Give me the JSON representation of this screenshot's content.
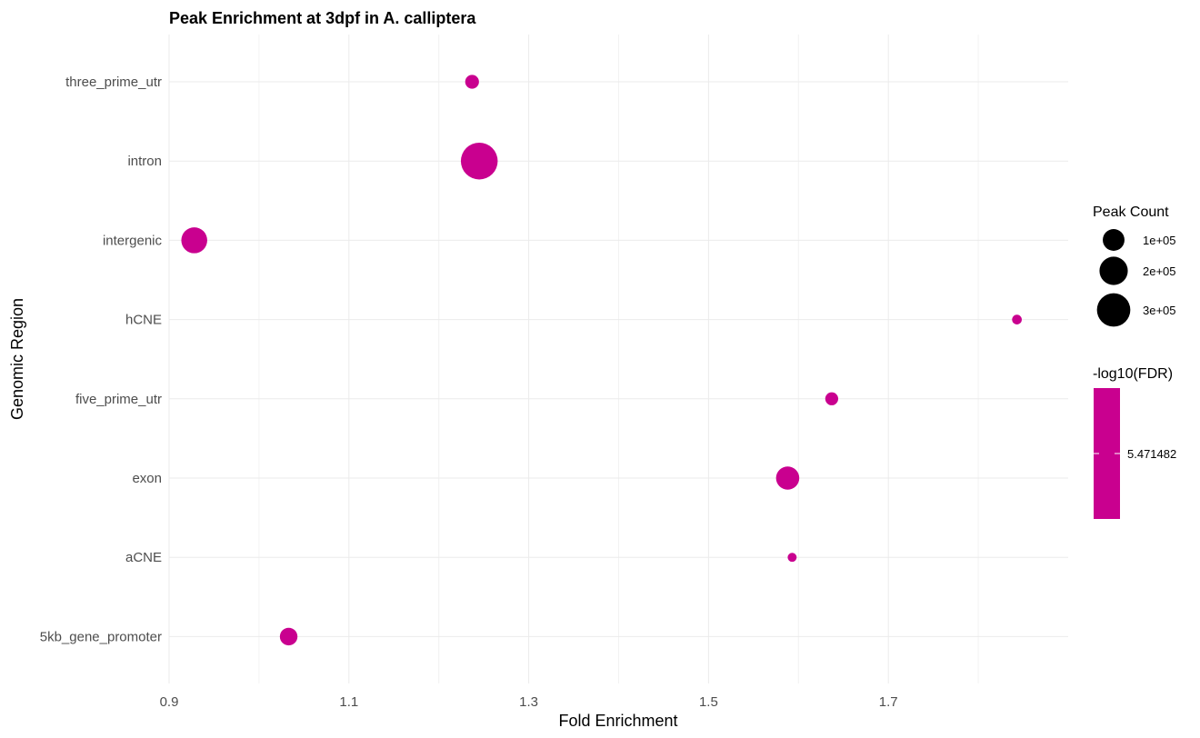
{
  "chart_data": {
    "type": "scatter",
    "title": "Peak Enrichment at 3dpf in A. calliptera",
    "xlabel": "Fold Enrichment",
    "ylabel": "Genomic Region",
    "xlim": [
      0.9,
      1.9
    ],
    "x_ticks": [
      0.9,
      1.1,
      1.3,
      1.5,
      1.7
    ],
    "x_tick_labels": [
      "0.9",
      "1.1",
      "1.3",
      "1.5",
      "1.7"
    ],
    "grid": true,
    "categories": [
      "three_prime_utr",
      "intron",
      "intergenic",
      "hCNE",
      "five_prime_utr",
      "exon",
      "aCNE",
      "5kb_gene_promoter"
    ],
    "points": [
      {
        "category": "three_prime_utr",
        "fold_enrichment": 1.237,
        "peak_count": 25000
      },
      {
        "category": "intron",
        "fold_enrichment": 1.245,
        "peak_count": 380000
      },
      {
        "category": "intergenic",
        "fold_enrichment": 0.928,
        "peak_count": 160000
      },
      {
        "category": "hCNE",
        "fold_enrichment": 1.843,
        "peak_count": 6000
      },
      {
        "category": "five_prime_utr",
        "fold_enrichment": 1.637,
        "peak_count": 20000
      },
      {
        "category": "exon",
        "fold_enrichment": 1.588,
        "peak_count": 120000
      },
      {
        "category": "aCNE",
        "fold_enrichment": 1.593,
        "peak_count": 4000
      },
      {
        "category": "5kb_gene_promoter",
        "fold_enrichment": 1.033,
        "peak_count": 55000
      }
    ],
    "point_color": "#c9008f",
    "size_legend": {
      "title": "Peak Count",
      "entries": [
        {
          "label": "1e+05",
          "value": 100000
        },
        {
          "label": "2e+05",
          "value": 200000
        },
        {
          "label": "3e+05",
          "value": 300000
        }
      ]
    },
    "color_legend": {
      "title": "-log10(FDR)",
      "label": "5.471482",
      "color": "#c9008f"
    },
    "legend_position": "right"
  }
}
